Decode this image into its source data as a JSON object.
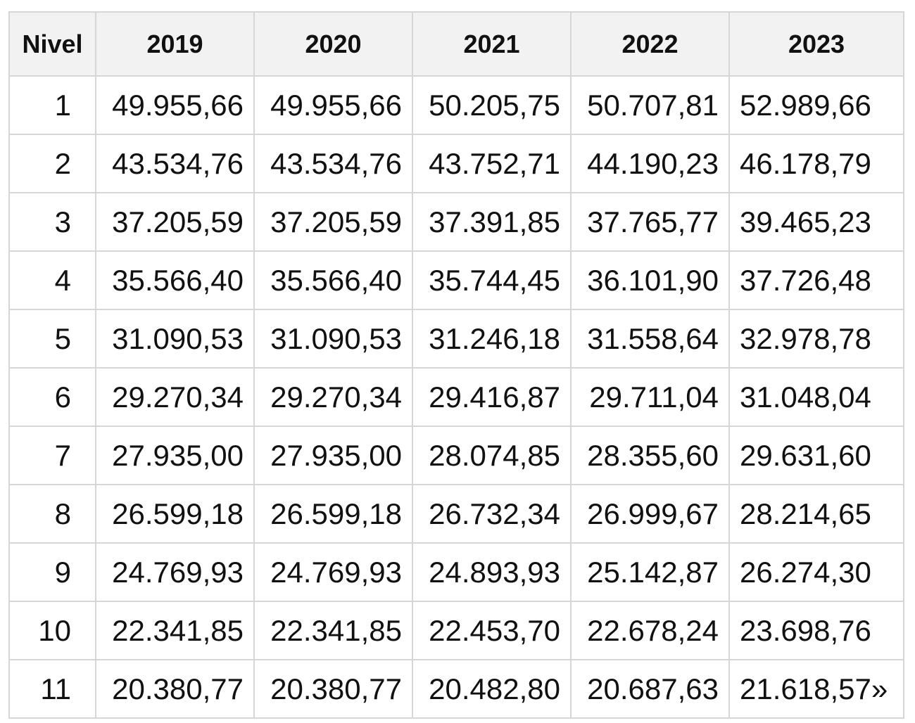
{
  "table": {
    "headers": [
      "Nivel",
      "2019",
      "2020",
      "2021",
      "2022",
      "2023"
    ],
    "rows": [
      [
        "1",
        "49.955,66",
        "49.955,66",
        "50.205,75",
        "50.707,81",
        "52.989,66"
      ],
      [
        "2",
        "43.534,76",
        "43.534,76",
        "43.752,71",
        "44.190,23",
        "46.178,79"
      ],
      [
        "3",
        "37.205,59",
        "37.205,59",
        "37.391,85",
        "37.765,77",
        "39.465,23"
      ],
      [
        "4",
        "35.566,40",
        "35.566,40",
        "35.744,45",
        "36.101,90",
        "37.726,48"
      ],
      [
        "5",
        "31.090,53",
        "31.090,53",
        "31.246,18",
        "31.558,64",
        "32.978,78"
      ],
      [
        "6",
        "29.270,34",
        "29.270,34",
        "29.416,87",
        "29.711,04",
        "31.048,04"
      ],
      [
        "7",
        "27.935,00",
        "27.935,00",
        "28.074,85",
        "28.355,60",
        "29.631,60"
      ],
      [
        "8",
        "26.599,18",
        "26.599,18",
        "26.732,34",
        "26.999,67",
        "28.214,65"
      ],
      [
        "9",
        "24.769,93",
        "24.769,93",
        "24.893,93",
        "25.142,87",
        "26.274,30"
      ],
      [
        "10",
        "22.341,85",
        "22.341,85",
        "22.453,70",
        "22.678,24",
        "23.698,76"
      ],
      [
        "11",
        "20.380,77",
        "20.380,77",
        "20.482,80",
        "20.687,63",
        "21.618,57»"
      ]
    ]
  }
}
